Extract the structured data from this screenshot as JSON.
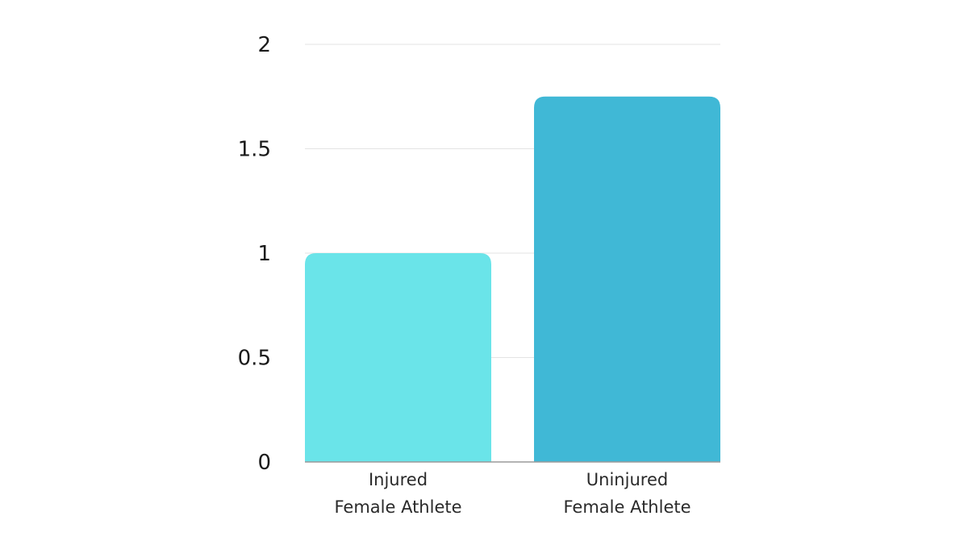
{
  "chart_data": {
    "type": "bar",
    "title": "",
    "xlabel": "",
    "ylabel": "",
    "categories": [
      [
        "Injured",
        "Female Athlete"
      ],
      [
        "Uninjured",
        "Female Athlete"
      ]
    ],
    "values": [
      1,
      1.75
    ],
    "colors": [
      "#6ae4e9",
      "#40b8d6"
    ],
    "ylim": [
      0,
      2
    ],
    "yticks": [
      0,
      0.5,
      1,
      1.5,
      2
    ],
    "ytick_labels": [
      "0",
      "0.5",
      "1",
      "1.5",
      "2"
    ],
    "grid": true,
    "legend": "none"
  }
}
